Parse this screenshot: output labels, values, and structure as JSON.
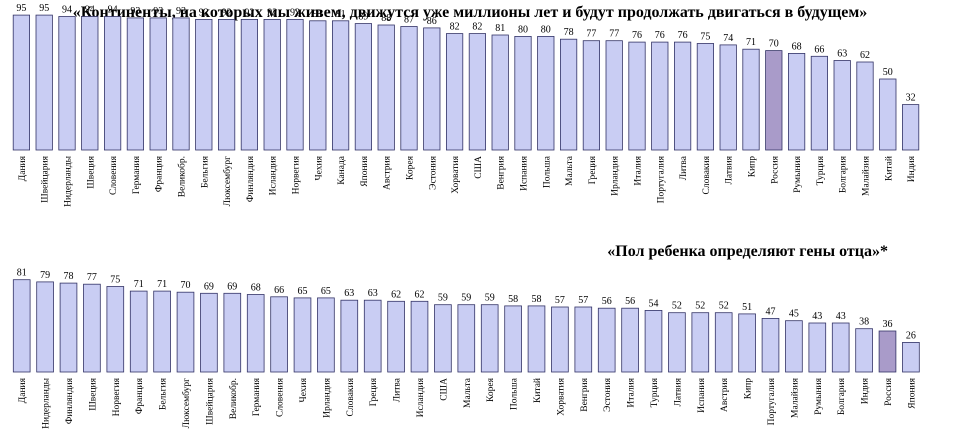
{
  "chart_data": [
    {
      "type": "bar",
      "title": "«Континенты, на которых мы живем, движутся уже миллионы лет и будут продолжать двигаться в будущем»",
      "categories": [
        "Дания",
        "Швейцария",
        "Нидерланды",
        "Швеция",
        "Словения",
        "Германия",
        "Франция",
        "Великобр.",
        "Бельгия",
        "Люксембург",
        "Финляндия",
        "Исландия",
        "Норвегия",
        "Чехия",
        "Канада",
        "Япония",
        "Австрия",
        "Корея",
        "Эстония",
        "Хорватия",
        "США",
        "Венгрия",
        "Испания",
        "Польша",
        "Мальта",
        "Греция",
        "Ирландия",
        "Италия",
        "Португалия",
        "Литва",
        "Словакия",
        "Латвия",
        "Кипр",
        "Россия",
        "Румыния",
        "Турция",
        "Болгария",
        "Малайзия",
        "Китай",
        "Индия"
      ],
      "values": [
        95,
        95,
        94,
        94,
        94,
        93,
        93,
        93,
        92,
        92,
        92,
        92,
        92,
        91,
        91,
        89,
        88,
        87,
        86,
        82,
        82,
        81,
        80,
        80,
        78,
        77,
        77,
        76,
        76,
        76,
        75,
        74,
        71,
        70,
        68,
        66,
        63,
        62,
        50,
        32
      ],
      "highlight": "Россия",
      "bar_color": "#c9cdf3",
      "bar_stroke": "#333366",
      "highlight_color": "#a99bc9",
      "ylim": [
        0,
        100
      ],
      "legend": "none",
      "grid": false
    },
    {
      "type": "bar",
      "title": "«Пол ребенка определяют гены отца»*",
      "categories": [
        "Дания",
        "Нидерланды",
        "Финляндия",
        "Швеция",
        "Норвегия",
        "Франция",
        "Бельгия",
        "Люксембург",
        "Швейцария",
        "Великобр.",
        "Германия",
        "Словения",
        "Чехия",
        "Ирландия",
        "Словакия",
        "Греция",
        "Литва",
        "Исландия",
        "США",
        "Мальта",
        "Корея",
        "Польша",
        "Китай",
        "Хорватия",
        "Венгрия",
        "Эстония",
        "Италия",
        "Турция",
        "Латвия",
        "Испания",
        "Австрия",
        "Кипр",
        "Португалия",
        "Малайзия",
        "Румыния",
        "Болгария",
        "Индия",
        "Россия",
        "Япония"
      ],
      "values": [
        81,
        79,
        78,
        77,
        75,
        71,
        71,
        70,
        69,
        69,
        68,
        66,
        65,
        65,
        63,
        63,
        62,
        62,
        59,
        59,
        59,
        58,
        58,
        57,
        57,
        56,
        56,
        54,
        52,
        52,
        52,
        51,
        47,
        45,
        43,
        43,
        38,
        36,
        26
      ],
      "highlight": "Россия",
      "bar_color": "#c9cdf3",
      "bar_stroke": "#333366",
      "highlight_color": "#a99bc9",
      "ylim": [
        0,
        100
      ],
      "legend": "none",
      "grid": false
    }
  ]
}
